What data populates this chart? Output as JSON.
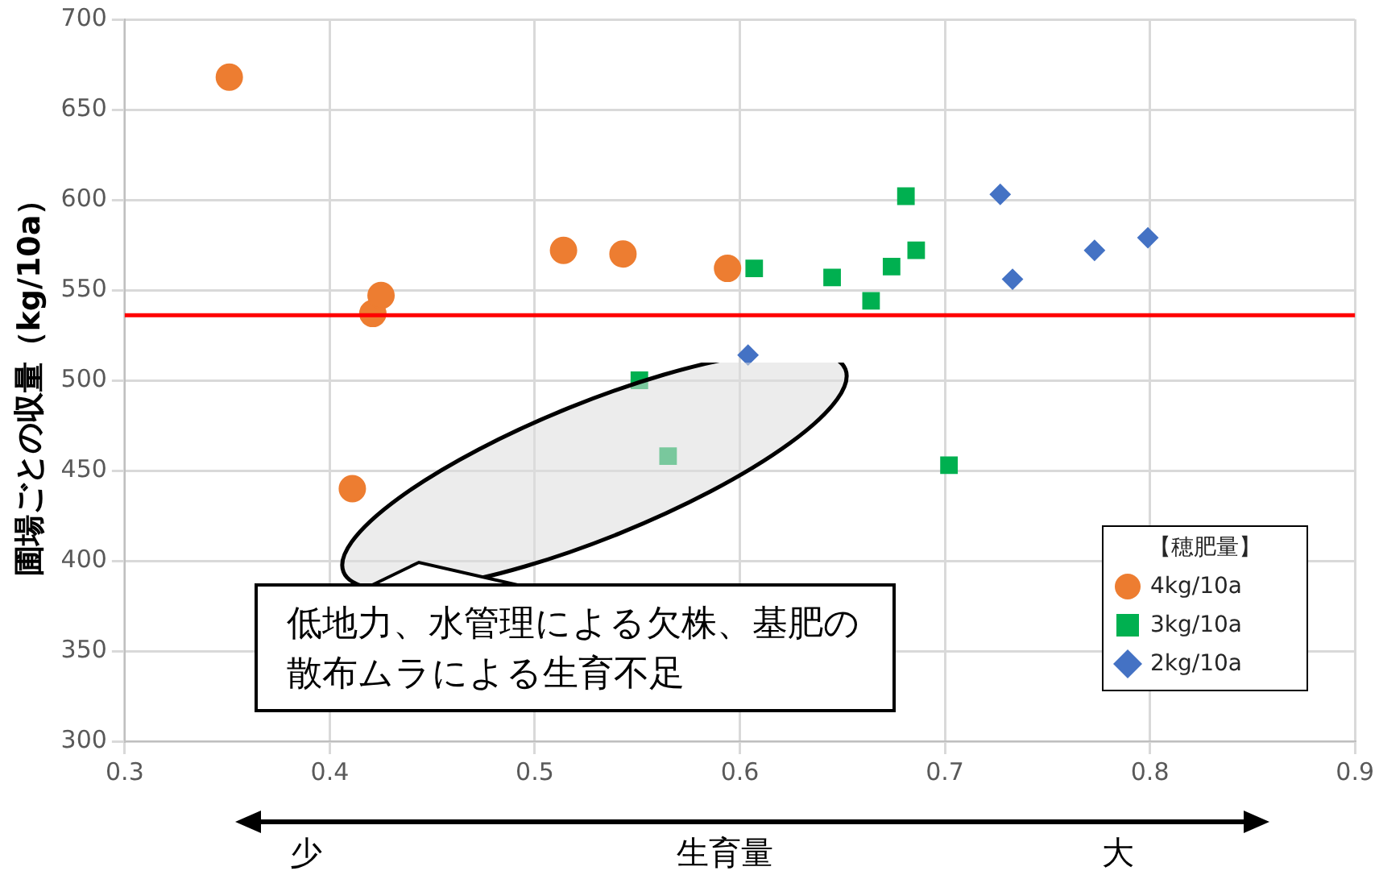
{
  "chart_data": {
    "type": "scatter",
    "xlabel": "生育量",
    "ylabel": "圃場ごとの収量（kg/10a）",
    "legend_title": "【穂肥量】",
    "legend": "bottom right",
    "grid": true,
    "xlim": [
      0.3,
      0.9
    ],
    "xticks": [
      0.3,
      0.4,
      0.5,
      0.6,
      0.7,
      0.8,
      0.9
    ],
    "ylim": [
      300,
      700
    ],
    "yticks": [
      300,
      350,
      400,
      450,
      500,
      550,
      600,
      650,
      700
    ],
    "series": [
      {
        "name": "4kg/10a",
        "color": "#ed7d31",
        "marker": "circle",
        "x": [
          0.351,
          0.421,
          0.425,
          0.514,
          0.543,
          0.594,
          0.411
        ],
        "values": [
          668,
          537,
          547,
          572,
          570,
          562,
          440
        ]
      },
      {
        "name": "3kg/10a",
        "color": "#00b050",
        "marker": "square",
        "x": [
          0.607,
          0.645,
          0.664,
          0.674,
          0.681,
          0.686,
          0.702,
          0.551,
          0.565
        ],
        "values": [
          562,
          557,
          544,
          563,
          602,
          572,
          453,
          500,
          458
        ]
      },
      {
        "name": "2kg/10a",
        "color": "#4472c4",
        "marker": "diamond",
        "x": [
          0.604,
          0.727,
          0.733,
          0.773,
          0.799
        ],
        "values": [
          514,
          603,
          556,
          572,
          579
        ]
      }
    ],
    "ref_lines": [
      {
        "axis": "y",
        "value": 536,
        "color": "#ff0000"
      }
    ],
    "annotations": [
      "低地力、水管理による欠株、基肥の散布ムラによる生育不足",
      "少",
      "大"
    ]
  }
}
